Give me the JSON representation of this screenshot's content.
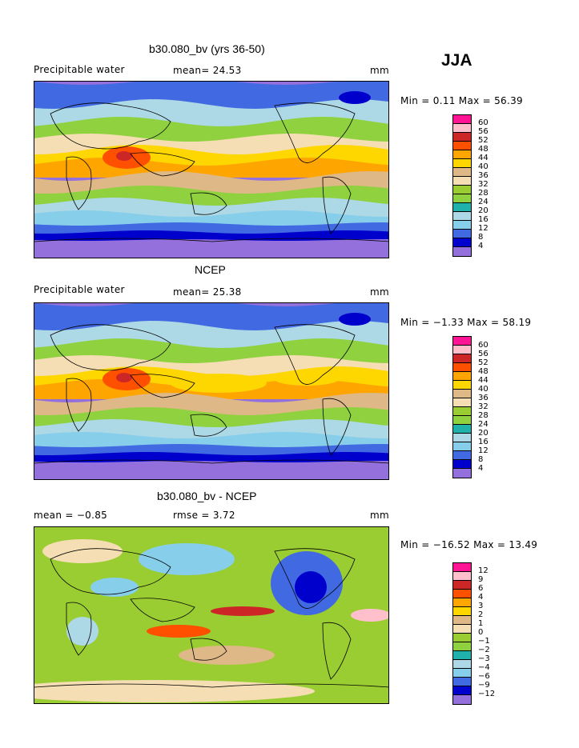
{
  "season": "JJA",
  "panels": [
    {
      "title": "b30.080_bv (yrs 36-50)",
      "left_label": "Precipitable water",
      "center_label": "mean=  24.53",
      "right_label": "mm",
      "minmax": "Min =   0.11 Max =  56.39",
      "scale": [
        "60",
        "56",
        "52",
        "48",
        "44",
        "40",
        "36",
        "32",
        "28",
        "24",
        "20",
        "16",
        "12",
        "8",
        "4"
      ]
    },
    {
      "title": "NCEP",
      "left_label": "Precipitable water",
      "center_label": "mean=  25.38",
      "right_label": "mm",
      "minmax": "Min =  −1.33 Max =  58.19",
      "scale": [
        "60",
        "56",
        "52",
        "48",
        "44",
        "40",
        "36",
        "32",
        "28",
        "24",
        "20",
        "16",
        "12",
        "8",
        "4"
      ]
    },
    {
      "title": "b30.080_bv - NCEP",
      "left_label": "mean =   −0.85",
      "center_label": "rmse =    3.72",
      "right_label": "mm",
      "minmax": "Min = −16.52 Max =  13.49",
      "scale": [
        "12",
        "9",
        "6",
        "4",
        "3",
        "2",
        "1",
        "0",
        "−1",
        "−2",
        "−3",
        "−4",
        "−6",
        "−9",
        "−12"
      ]
    }
  ],
  "colors": [
    "#ff1493",
    "#ffc0cb",
    "#cd2626",
    "#ff5000",
    "#ffa500",
    "#ffd700",
    "#deb887",
    "#f5deb3",
    "#9acd32",
    "#8fd13f",
    "#20b2aa",
    "#add8e6",
    "#87ceeb",
    "#4169e1",
    "#0000cd",
    "#9370db"
  ]
}
